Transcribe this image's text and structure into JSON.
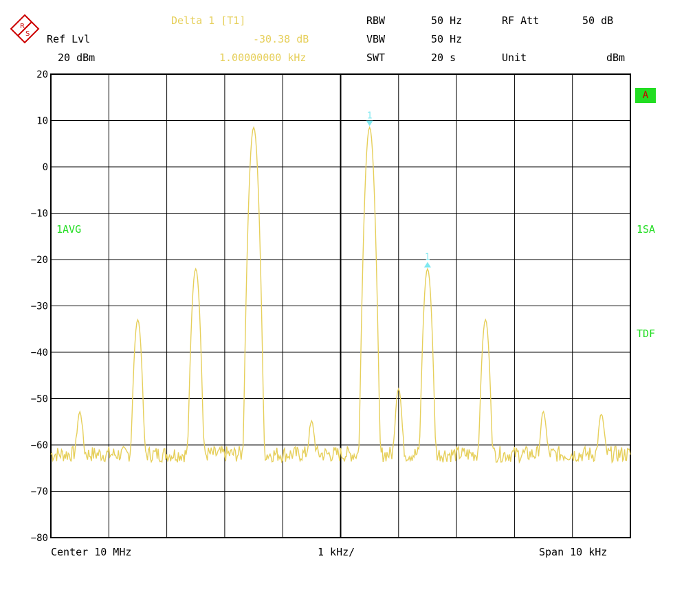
{
  "header": {
    "ref_lvl_label": "Ref Lvl",
    "ref_lvl_value": "20 dBm",
    "marker_title": "Delta 1 [T1]",
    "marker_level": "-30.38 dB",
    "marker_freq": "1.00000000 kHz",
    "rbw_label": "RBW",
    "rbw_value": "50 Hz",
    "vbw_label": "VBW",
    "vbw_value": "50 Hz",
    "swt_label": "SWT",
    "swt_value": "20 s",
    "rfatt_label": "RF Att",
    "rfatt_value": "50 dB",
    "unit_label": "Unit",
    "unit_value": "dBm"
  },
  "side_labels": {
    "trace_mode": "1AVG",
    "a_badge": "A",
    "detector": "1SA",
    "tdf": "TDF"
  },
  "footer": {
    "center": "Center 10 MHz",
    "div": "1 kHz/",
    "span": "Span 10 kHz"
  },
  "colors": {
    "trace": "#e6cf5a",
    "marker": "#7fe8f0",
    "grid": "#000000",
    "label_green": "#22dd22"
  },
  "chart_data": {
    "type": "line",
    "x_unit": "MHz",
    "xlim": [
      9.995,
      10.005
    ],
    "ylim": [
      -80,
      20
    ],
    "yticks": [
      20,
      10,
      0,
      -10,
      -20,
      -30,
      -40,
      -50,
      -60,
      -70,
      -80
    ],
    "ytick_labels": [
      "20",
      "10",
      "0",
      "-10",
      "-20",
      "-30",
      "-40",
      "-50",
      "-60",
      "-70",
      "-80"
    ],
    "grid": true,
    "noise_floor": -62,
    "peaks": [
      {
        "x": 9.9945,
        "y": -56
      },
      {
        "x": 9.9955,
        "y": -53.5
      },
      {
        "x": 9.9965,
        "y": -33
      },
      {
        "x": 9.9975,
        "y": -22
      },
      {
        "x": 9.9985,
        "y": 8.5
      },
      {
        "x": 9.9995,
        "y": -56
      },
      {
        "x": 10.0005,
        "y": 8.5
      },
      {
        "x": 10.001,
        "y": -48
      },
      {
        "x": 10.0015,
        "y": -22
      },
      {
        "x": 10.0025,
        "y": -33
      },
      {
        "x": 10.0035,
        "y": -53.5
      },
      {
        "x": 10.0045,
        "y": -54
      }
    ],
    "markers": [
      {
        "label": "1",
        "x": 10.0005,
        "y": 8.5,
        "direction": "down"
      },
      {
        "label": "1",
        "x": 10.0015,
        "y": -22,
        "direction": "up"
      }
    ]
  }
}
